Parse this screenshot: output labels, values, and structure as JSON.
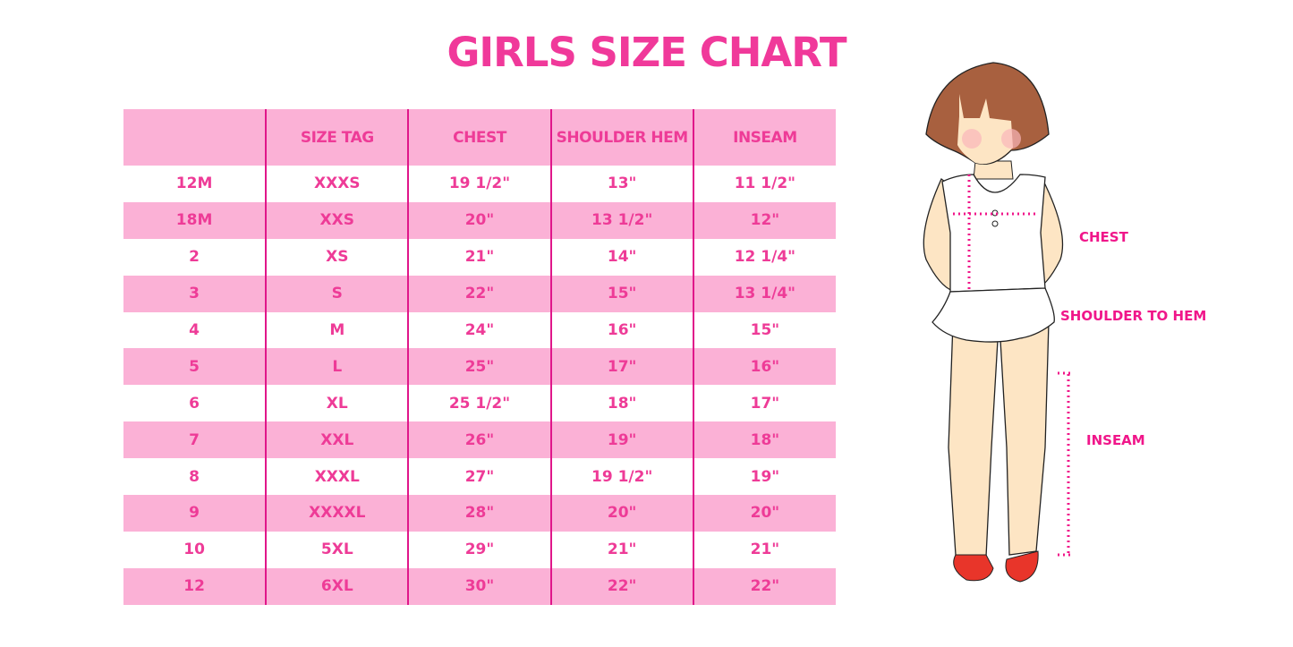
{
  "title": "GIRLS SIZE CHART",
  "table": {
    "headers": [
      "",
      "SIZE TAG",
      "CHEST",
      "SHOULDER HEM",
      "INSEAM"
    ],
    "rows": [
      [
        "12M",
        "XXXS",
        "19 1/2\"",
        "13\"",
        "11 1/2\""
      ],
      [
        "18M",
        "XXS",
        "20\"",
        "13 1/2\"",
        "12\""
      ],
      [
        "2",
        "XS",
        "21\"",
        "14\"",
        "12 1/4\""
      ],
      [
        "3",
        "S",
        "22\"",
        "15\"",
        "13 1/4\""
      ],
      [
        "4",
        "M",
        "24\"",
        "16\"",
        "15\""
      ],
      [
        "5",
        "L",
        "25\"",
        "17\"",
        "16\""
      ],
      [
        "6",
        "XL",
        "25 1/2\"",
        "18\"",
        "17\""
      ],
      [
        "7",
        "XXL",
        "26\"",
        "19\"",
        "18\""
      ],
      [
        "8",
        "XXXL",
        "27\"",
        "19 1/2\"",
        "19\""
      ],
      [
        "9",
        "XXXXL",
        "28\"",
        "20\"",
        "20\""
      ],
      [
        "10",
        "5XL",
        "29\"",
        "21\"",
        "21\""
      ],
      [
        "12",
        "6XL",
        "30\"",
        "22\"",
        "22\""
      ]
    ]
  },
  "diagram": {
    "labels": {
      "chest": "CHEST",
      "shoulder_to_hem": "SHOULDER TO HEM",
      "inseam": "INSEAM"
    }
  },
  "colors": {
    "accent": "#ee3b97",
    "row_pink": "#fbb1d6",
    "divider": "#e0168a"
  }
}
